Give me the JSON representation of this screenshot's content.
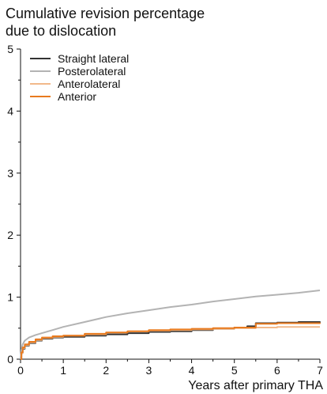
{
  "chart_data": {
    "type": "line",
    "title_lines": [
      "Cumulative revision percentage",
      "due to dislocation"
    ],
    "xlabel": "Years after primary THA",
    "ylabel": "",
    "xlim": [
      0,
      7
    ],
    "ylim": [
      0,
      5
    ],
    "x_ticks": [
      "0",
      "1",
      "2",
      "3",
      "4",
      "5",
      "6",
      "7"
    ],
    "y_ticks": [
      "0",
      "1",
      "2",
      "3",
      "4",
      "5"
    ],
    "grid": false,
    "legend_position": "top-left",
    "series": [
      {
        "name": "Straight lateral",
        "color": "#333333",
        "step": true,
        "points": [
          [
            0,
            0
          ],
          [
            0.02,
            0.1
          ],
          [
            0.05,
            0.17
          ],
          [
            0.1,
            0.22
          ],
          [
            0.2,
            0.26
          ],
          [
            0.35,
            0.3
          ],
          [
            0.5,
            0.33
          ],
          [
            0.75,
            0.35
          ],
          [
            1,
            0.36
          ],
          [
            1.5,
            0.38
          ],
          [
            2,
            0.4
          ],
          [
            2.5,
            0.42
          ],
          [
            3,
            0.44
          ],
          [
            3.5,
            0.45
          ],
          [
            4,
            0.47
          ],
          [
            4.5,
            0.49
          ],
          [
            5,
            0.51
          ],
          [
            5.3,
            0.53
          ],
          [
            5.5,
            0.58
          ],
          [
            6,
            0.59
          ],
          [
            6.5,
            0.6
          ],
          [
            7,
            0.61
          ]
        ]
      },
      {
        "name": "Posterolateral",
        "color": "#b3b3b3",
        "step": false,
        "points": [
          [
            0,
            0
          ],
          [
            0.02,
            0.15
          ],
          [
            0.05,
            0.24
          ],
          [
            0.1,
            0.3
          ],
          [
            0.2,
            0.35
          ],
          [
            0.35,
            0.39
          ],
          [
            0.5,
            0.42
          ],
          [
            0.75,
            0.47
          ],
          [
            1,
            0.52
          ],
          [
            1.5,
            0.6
          ],
          [
            2,
            0.68
          ],
          [
            2.5,
            0.74
          ],
          [
            3,
            0.79
          ],
          [
            3.5,
            0.84
          ],
          [
            4,
            0.88
          ],
          [
            4.5,
            0.93
          ],
          [
            5,
            0.97
          ],
          [
            5.5,
            1.01
          ],
          [
            6,
            1.04
          ],
          [
            6.5,
            1.07
          ],
          [
            7,
            1.11
          ]
        ]
      },
      {
        "name": "Anterolateral",
        "color": "#f2b98a",
        "step": true,
        "points": [
          [
            0,
            0
          ],
          [
            0.02,
            0.1
          ],
          [
            0.05,
            0.18
          ],
          [
            0.1,
            0.23
          ],
          [
            0.2,
            0.27
          ],
          [
            0.35,
            0.31
          ],
          [
            0.5,
            0.34
          ],
          [
            0.75,
            0.36
          ],
          [
            1,
            0.38
          ],
          [
            1.5,
            0.4
          ],
          [
            2,
            0.43
          ],
          [
            2.5,
            0.45
          ],
          [
            3,
            0.46
          ],
          [
            3.5,
            0.47
          ],
          [
            4,
            0.48
          ],
          [
            4.5,
            0.49
          ],
          [
            5,
            0.5
          ],
          [
            5.5,
            0.51
          ],
          [
            6,
            0.52
          ],
          [
            6.5,
            0.52
          ],
          [
            7,
            0.52
          ]
        ]
      },
      {
        "name": "Anterior",
        "color": "#e87a1e",
        "step": true,
        "points": [
          [
            0,
            0
          ],
          [
            0.02,
            0.11
          ],
          [
            0.05,
            0.19
          ],
          [
            0.1,
            0.24
          ],
          [
            0.2,
            0.28
          ],
          [
            0.35,
            0.32
          ],
          [
            0.5,
            0.35
          ],
          [
            0.75,
            0.37
          ],
          [
            1,
            0.38
          ],
          [
            1.5,
            0.41
          ],
          [
            2,
            0.43
          ],
          [
            2.5,
            0.45
          ],
          [
            3,
            0.47
          ],
          [
            3.5,
            0.48
          ],
          [
            4,
            0.49
          ],
          [
            4.5,
            0.5
          ],
          [
            5,
            0.51
          ],
          [
            5.5,
            0.57
          ],
          [
            6,
            0.58
          ],
          [
            6.5,
            0.58
          ],
          [
            7,
            0.59
          ]
        ]
      }
    ]
  }
}
